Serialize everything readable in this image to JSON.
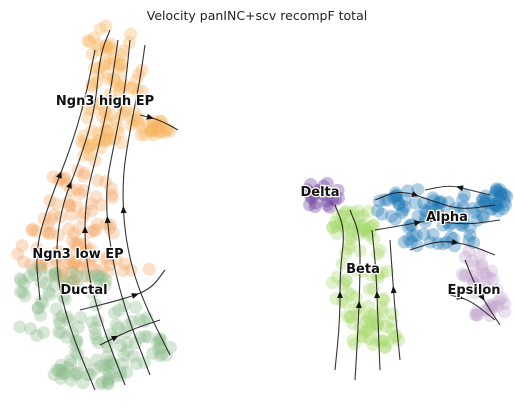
{
  "chart_data": {
    "type": "scatter",
    "title": "Velocity panINC+scv recompF total",
    "xlabel": "",
    "ylabel": "",
    "axes_visible": false,
    "grid": false,
    "legend": "on data",
    "plot_style": "scatter with velocity streamlines",
    "series": [
      {
        "name": "Ngn3 high EP",
        "color": "#f7b462"
      },
      {
        "name": "Ngn3 low EP",
        "color": "#f4a96a"
      },
      {
        "name": "Ductal",
        "color": "#8fbc8f"
      },
      {
        "name": "Delta",
        "color": "#6a3d9a"
      },
      {
        "name": "Beta",
        "color": "#a6d96a"
      },
      {
        "name": "Alpha",
        "color": "#1f78b4"
      },
      {
        "name": "Epsilon",
        "color": "#c2a5cf"
      }
    ]
  }
}
